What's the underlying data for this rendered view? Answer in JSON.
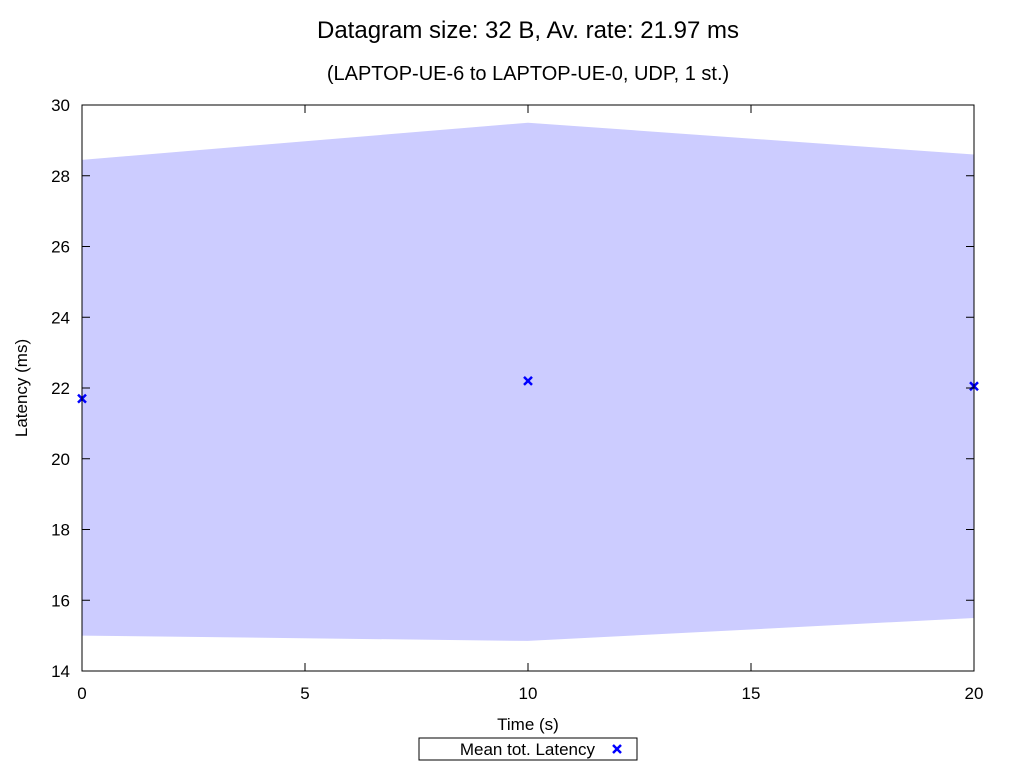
{
  "chart_data": {
    "type": "area",
    "title": "Datagram size: 32 B, Av. rate: 21.97 ms",
    "subtitle": "(LAPTOP-UE-6 to LAPTOP-UE-0, UDP, 1 st.)",
    "xlabel": "Time (s)",
    "ylabel": "Latency (ms)",
    "xlim": [
      0,
      20
    ],
    "ylim": [
      14,
      30
    ],
    "xticks": [
      0,
      5,
      10,
      15,
      20
    ],
    "yticks": [
      14,
      16,
      18,
      20,
      22,
      24,
      26,
      28,
      30
    ],
    "grid": false,
    "legend_position": "bottom-center",
    "band": {
      "x": [
        0,
        10,
        20
      ],
      "upper": [
        28.45,
        29.5,
        28.6
      ],
      "lower": [
        15.0,
        14.85,
        15.5
      ],
      "color": "#ccccff"
    },
    "series": [
      {
        "name": "Mean tot. Latency",
        "marker": "x",
        "color": "#0000ff",
        "x": [
          0,
          10,
          20
        ],
        "y": [
          21.7,
          22.2,
          22.05
        ]
      }
    ]
  }
}
